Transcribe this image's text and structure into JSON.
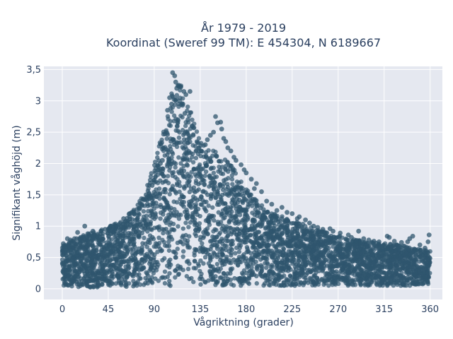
{
  "chart_data": {
    "type": "scatter",
    "title_line1": "År 1979 - 2019",
    "title_line2": "Koordinat (Sweref 99 TM): E 454304, N 6189667",
    "xlabel": "Vågriktning (grader)",
    "ylabel": "Signifikant våghöjd (m)",
    "xlim": [
      -18,
      372
    ],
    "ylim": [
      -0.17,
      3.55
    ],
    "x_ticks": [
      0,
      45,
      90,
      135,
      180,
      225,
      270,
      315,
      360
    ],
    "x_tick_labels": [
      "0",
      "45",
      "90",
      "135",
      "180",
      "225",
      "270",
      "315",
      "360"
    ],
    "y_ticks": [
      0,
      0.5,
      1,
      1.5,
      2,
      2.5,
      3,
      3.5
    ],
    "y_tick_labels": [
      "0",
      "0,5",
      "1",
      "1,5",
      "2",
      "2,5",
      "3",
      "3,5"
    ],
    "grid": true,
    "marker_color": "#2f566e",
    "background_color": "#e5e8f0",
    "envelope": {
      "x": [
        0,
        20,
        40,
        60,
        80,
        90,
        100,
        108,
        115,
        125,
        135,
        150,
        165,
        180,
        200,
        225,
        250,
        270,
        300,
        330,
        360
      ],
      "y_max": [
        0.7,
        0.85,
        0.95,
        1.1,
        1.5,
        2.0,
        2.6,
        3.2,
        3.3,
        2.9,
        2.4,
        2.2,
        2.0,
        1.6,
        1.25,
        1.1,
        0.95,
        0.85,
        0.75,
        0.7,
        0.6
      ],
      "y_min": [
        0.05,
        0.02,
        0.02,
        0.02,
        0.03,
        0.03,
        0.04,
        0.05,
        0.06,
        0.06,
        0.06,
        0.06,
        0.05,
        0.05,
        0.05,
        0.05,
        0.05,
        0.05,
        0.05,
        0.05,
        0.05
      ]
    },
    "points": [
      [
        108,
        3.45
      ],
      [
        110,
        3.4
      ],
      [
        111,
        3.3
      ],
      [
        112,
        3.2
      ],
      [
        114,
        3.25
      ],
      [
        116,
        3.22
      ],
      [
        119,
        3.15
      ],
      [
        121,
        3.1
      ],
      [
        125,
        3.15
      ],
      [
        105,
        3.05
      ],
      [
        107,
        2.95
      ],
      [
        103,
        2.85
      ],
      [
        118,
        2.95
      ],
      [
        123,
        2.7
      ],
      [
        120,
        2.8
      ],
      [
        127,
        2.6
      ],
      [
        150,
        2.75
      ],
      [
        152,
        2.65
      ],
      [
        155,
        2.66
      ],
      [
        156,
        2.55
      ],
      [
        148,
        2.5
      ],
      [
        145,
        2.45
      ],
      [
        158,
        2.4
      ],
      [
        160,
        2.35
      ],
      [
        142,
        2.38
      ],
      [
        140,
        2.3
      ],
      [
        162,
        2.25
      ],
      [
        165,
        2.2
      ],
      [
        168,
        2.1
      ],
      [
        170,
        2.05
      ],
      [
        175,
        1.98
      ],
      [
        178,
        1.9
      ],
      [
        180,
        1.85
      ],
      [
        185,
        1.75
      ],
      [
        190,
        1.68
      ],
      [
        188,
        1.6
      ],
      [
        195,
        1.55
      ],
      [
        200,
        1.4
      ],
      [
        205,
        1.35
      ],
      [
        210,
        1.25
      ],
      [
        215,
        1.3
      ],
      [
        220,
        1.22
      ],
      [
        225,
        1.2
      ],
      [
        230,
        1.12
      ],
      [
        232,
        1.15
      ],
      [
        238,
        1.1
      ],
      [
        242,
        1.05
      ],
      [
        246,
        1.0
      ],
      [
        250,
        0.98
      ],
      [
        255,
        0.95
      ],
      [
        262,
        0.96
      ],
      [
        265,
        0.92
      ],
      [
        272,
        0.89
      ],
      [
        280,
        0.86
      ],
      [
        283,
        0.82
      ],
      [
        290,
        0.92
      ],
      [
        295,
        0.8
      ],
      [
        300,
        0.78
      ],
      [
        305,
        0.76
      ],
      [
        310,
        0.75
      ],
      [
        318,
        0.84
      ],
      [
        320,
        0.82
      ],
      [
        325,
        0.76
      ],
      [
        332,
        0.74
      ],
      [
        338,
        0.75
      ],
      [
        340,
        0.8
      ],
      [
        343,
        0.84
      ],
      [
        350,
        0.7
      ],
      [
        355,
        0.65
      ],
      [
        359,
        0.86
      ],
      [
        358,
        0.75
      ],
      [
        98,
        2.05
      ],
      [
        96,
        2.0
      ],
      [
        94,
        1.95
      ],
      [
        90,
        1.7
      ],
      [
        88,
        1.65
      ],
      [
        85,
        1.45
      ],
      [
        82,
        1.5
      ],
      [
        78,
        1.33
      ],
      [
        75,
        1.28
      ],
      [
        70,
        1.2
      ],
      [
        66,
        1.15
      ],
      [
        62,
        1.08
      ],
      [
        60,
        1.12
      ],
      [
        55,
        1.02
      ],
      [
        50,
        0.98
      ],
      [
        48,
        1.0
      ],
      [
        42,
        0.95
      ],
      [
        38,
        0.92
      ],
      [
        30,
        0.92
      ],
      [
        25,
        0.88
      ],
      [
        22,
        1.0
      ],
      [
        18,
        0.82
      ],
      [
        15,
        0.9
      ],
      [
        12,
        0.8
      ],
      [
        8,
        0.78
      ],
      [
        5,
        0.8
      ],
      [
        3,
        0.68
      ],
      [
        1,
        0.72
      ]
    ]
  }
}
